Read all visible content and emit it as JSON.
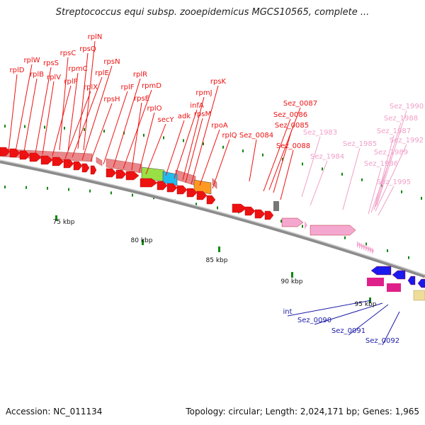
{
  "title": "Streptococcus equi subsp. zooepidemicus MGCS10565, complete ...",
  "footer": {
    "accession": "Accession: NC_011134",
    "stats": "Topology: circular; Length: 2,024,171 bp; Genes: 1,965"
  },
  "colors": {
    "red_gene": "#ee1111",
    "salmon_band": "#e8888a",
    "pink_label": "#f0a0c8",
    "pink_gene": "#f4a8d0",
    "blue_label": "#1c1ca8",
    "blue_gene": "#1a1aee",
    "magenta_gene": "#e0208a",
    "lime_block": "#99e044",
    "cyan_block": "#22bbee",
    "orange_block": "#ff9922",
    "gray_gene": "#777777",
    "yellow_gene": "#eedd99",
    "tick_green": "#118811",
    "backbone": "#888888"
  },
  "scale_labels": [
    {
      "text": "75 kbp"
    },
    {
      "text": "80 kbp"
    },
    {
      "text": "85 kbp"
    },
    {
      "text": "90 kbp"
    },
    {
      "text": "95 kbp"
    }
  ],
  "labels_red": [
    "rplN",
    "rpsQ",
    "rplW",
    "rpsC",
    "rpmC",
    "rplD",
    "rplB",
    "rpsS",
    "rplV",
    "rplP",
    "rplE",
    "rplX",
    "rpsN",
    "rpsH",
    "rplF",
    "rplR",
    "rpmD",
    "rpsE",
    "rplO",
    "secY",
    "adk",
    "infA",
    "rpmJ",
    "rpsM",
    "rpsK",
    "rpoA",
    "rplQ",
    "Sez_0087",
    "Sez_0086",
    "Sez_0085",
    "Sez_0084",
    "Sez_0088"
  ],
  "labels_pink": [
    "Sez_1983",
    "Sez_1984",
    "Sez_1985",
    "Sez_1990",
    "Sez_1988",
    "Sez_1987",
    "Sez_1992",
    "Sez_1989",
    "Sez_1986",
    "Sez_1995"
  ],
  "labels_blue": [
    "int",
    "Sez_0090",
    "Sez_0091",
    "Sez_0092"
  ]
}
